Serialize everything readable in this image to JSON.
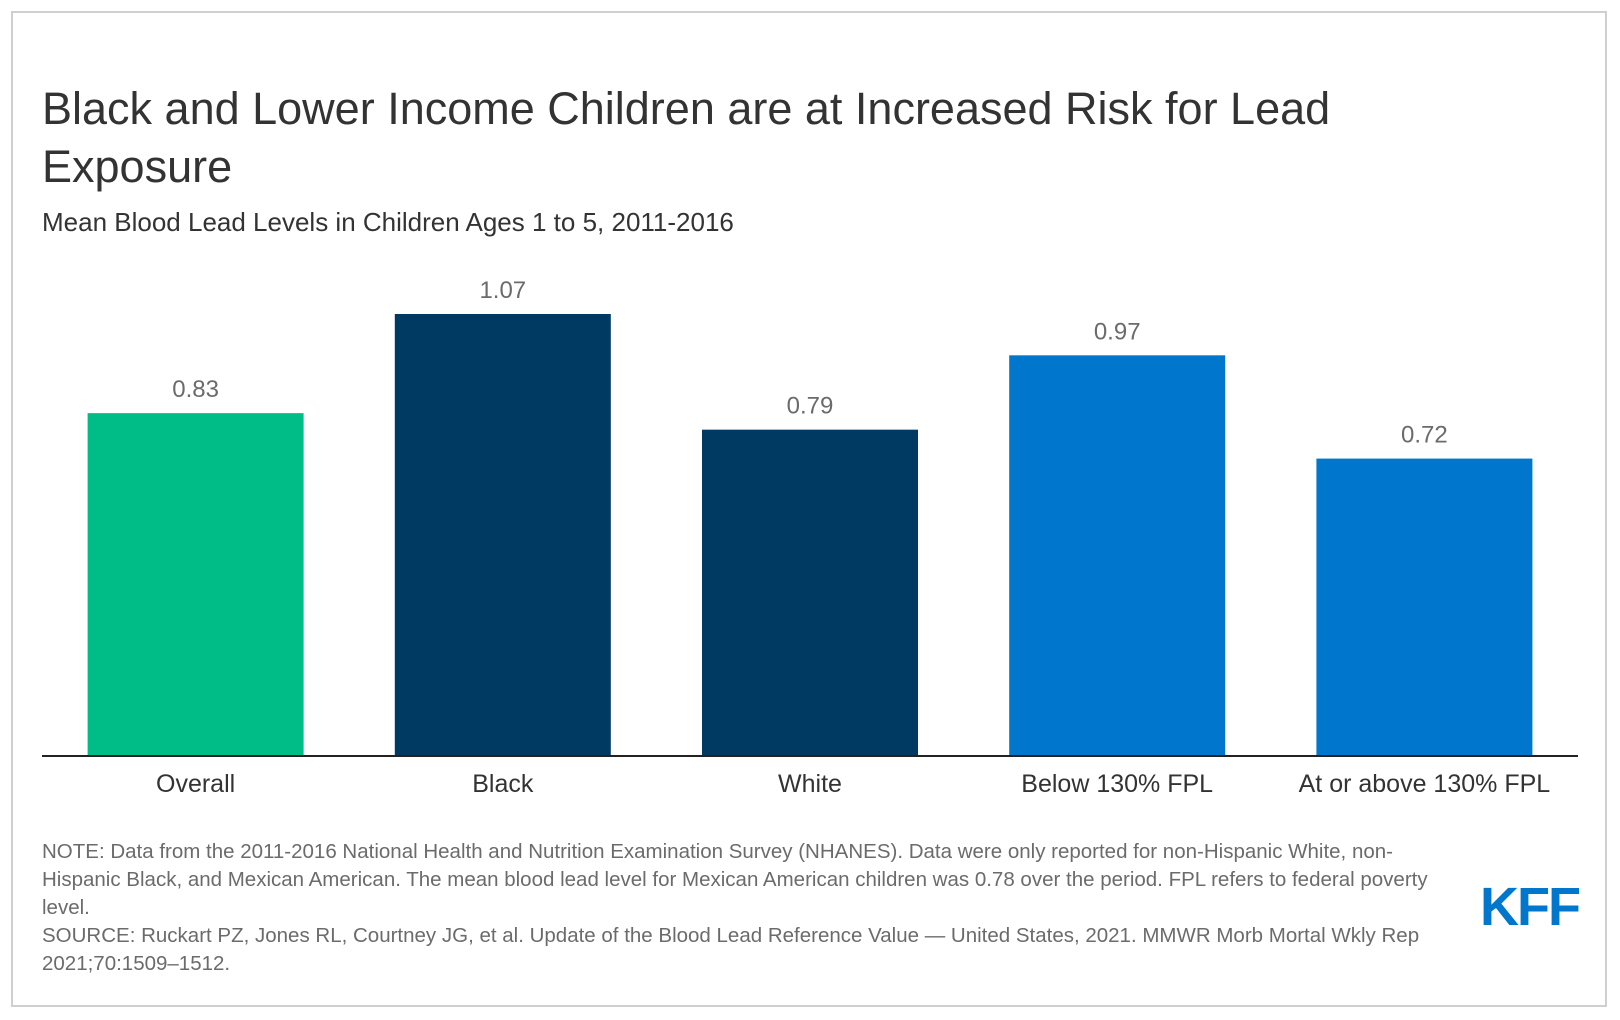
{
  "header": {
    "title": "Black and Lower Income Children are at Increased Risk for Lead Exposure",
    "subtitle": "Mean Blood Lead Levels in Children Ages 1 to 5, 2011-2016"
  },
  "chart_data": {
    "type": "bar",
    "title": "Black and Lower Income Children are at Increased Risk for Lead Exposure",
    "subtitle": "Mean Blood Lead Levels in Children Ages 1 to 5, 2011-2016",
    "xlabel": "",
    "ylabel": "",
    "ylim": [
      0,
      1.2
    ],
    "grid": false,
    "categories": [
      "Overall",
      "Black",
      "White",
      "Below 130% FPL",
      "At or above 130% FPL"
    ],
    "values": [
      0.83,
      1.07,
      0.79,
      0.97,
      0.72
    ],
    "value_labels": [
      "0.83",
      "1.07",
      "0.79",
      "0.97",
      "0.72"
    ],
    "colors": [
      "#00bd87",
      "#003a63",
      "#003a63",
      "#0077cc",
      "#0077cc"
    ]
  },
  "footer": {
    "note": "NOTE: Data from the 2011-2016 National Health and Nutrition Examination Survey (NHANES). Data were only reported for non-Hispanic White, non-Hispanic Black, and Mexican American. The mean blood lead level for Mexican American children was 0.78 over the period. FPL refers to federal poverty level.",
    "source": "SOURCE: Ruckart PZ, Jones RL, Courtney JG, et al. Update of the Blood Lead Reference Value — United States, 2021. MMWR Morb Mortal Wkly Rep 2021;70:1509–1512.",
    "logo_text": "KFF"
  }
}
